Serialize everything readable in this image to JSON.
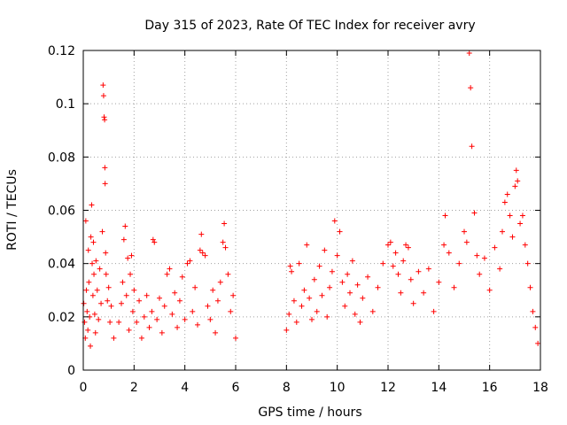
{
  "chart_data": {
    "type": "scatter",
    "title": "Day 315 of 2023, Rate Of TEC Index for receiver avry",
    "xlabel": "GPS time / hours",
    "ylabel": "ROTI / TECUs",
    "xlim": [
      0,
      18
    ],
    "ylim": [
      0,
      0.12
    ],
    "x_ticks": [
      0,
      2,
      4,
      6,
      8,
      10,
      12,
      14,
      16,
      18
    ],
    "x_tick_labels": [
      "0",
      "2",
      "4",
      "6",
      "8",
      "10",
      "12",
      "14",
      "16",
      "18"
    ],
    "y_ticks": [
      0,
      0.02,
      0.04,
      0.06,
      0.08,
      0.1,
      0.12
    ],
    "y_tick_labels": [
      "0",
      "0.02",
      "0.04",
      "0.06",
      "0.08",
      "0.1",
      "0.12"
    ],
    "grid": true,
    "marker": "plus",
    "color": "#ff0000",
    "data_gap_hours": [
      6.0,
      8.0
    ],
    "series": [
      {
        "name": "ROTI",
        "points": [
          [
            0.02,
            0.025
          ],
          [
            0.05,
            0.018
          ],
          [
            0.08,
            0.012
          ],
          [
            0.1,
            0.056
          ],
          [
            0.12,
            0.03
          ],
          [
            0.15,
            0.022
          ],
          [
            0.18,
            0.015
          ],
          [
            0.2,
            0.045
          ],
          [
            0.22,
            0.033
          ],
          [
            0.25,
            0.02
          ],
          [
            0.28,
            0.009
          ],
          [
            0.3,
            0.05
          ],
          [
            0.33,
            0.062
          ],
          [
            0.35,
            0.04
          ],
          [
            0.38,
            0.028
          ],
          [
            0.4,
            0.048
          ],
          [
            0.42,
            0.036
          ],
          [
            0.45,
            0.021
          ],
          [
            0.48,
            0.014
          ],
          [
            0.5,
            0.041
          ],
          [
            0.55,
            0.03
          ],
          [
            0.6,
            0.019
          ],
          [
            0.65,
            0.038
          ],
          [
            0.7,
            0.025
          ],
          [
            0.75,
            0.052
          ],
          [
            0.78,
            0.107
          ],
          [
            0.8,
            0.103
          ],
          [
            0.82,
            0.095
          ],
          [
            0.84,
            0.094
          ],
          [
            0.85,
            0.076
          ],
          [
            0.86,
            0.07
          ],
          [
            0.88,
            0.044
          ],
          [
            0.9,
            0.036
          ],
          [
            0.95,
            0.026
          ],
          [
            1.0,
            0.031
          ],
          [
            1.05,
            0.018
          ],
          [
            1.1,
            0.024
          ],
          [
            1.2,
            0.012
          ],
          [
            1.4,
            0.018
          ],
          [
            1.5,
            0.025
          ],
          [
            1.55,
            0.033
          ],
          [
            1.6,
            0.049
          ],
          [
            1.65,
            0.054
          ],
          [
            1.7,
            0.028
          ],
          [
            1.75,
            0.042
          ],
          [
            1.8,
            0.015
          ],
          [
            1.85,
            0.036
          ],
          [
            1.9,
            0.043
          ],
          [
            1.95,
            0.022
          ],
          [
            2.0,
            0.03
          ],
          [
            2.1,
            0.018
          ],
          [
            2.2,
            0.026
          ],
          [
            2.3,
            0.012
          ],
          [
            2.4,
            0.02
          ],
          [
            2.5,
            0.028
          ],
          [
            2.6,
            0.016
          ],
          [
            2.7,
            0.022
          ],
          [
            2.75,
            0.049
          ],
          [
            2.8,
            0.048
          ],
          [
            2.9,
            0.019
          ],
          [
            3.0,
            0.027
          ],
          [
            3.1,
            0.014
          ],
          [
            3.2,
            0.024
          ],
          [
            3.3,
            0.036
          ],
          [
            3.4,
            0.038
          ],
          [
            3.5,
            0.021
          ],
          [
            3.6,
            0.029
          ],
          [
            3.7,
            0.016
          ],
          [
            3.8,
            0.026
          ],
          [
            3.9,
            0.035
          ],
          [
            4.0,
            0.019
          ],
          [
            4.1,
            0.04
          ],
          [
            4.2,
            0.041
          ],
          [
            4.3,
            0.022
          ],
          [
            4.4,
            0.031
          ],
          [
            4.5,
            0.017
          ],
          [
            4.6,
            0.045
          ],
          [
            4.65,
            0.051
          ],
          [
            4.7,
            0.044
          ],
          [
            4.8,
            0.043
          ],
          [
            4.9,
            0.024
          ],
          [
            5.0,
            0.019
          ],
          [
            5.1,
            0.03
          ],
          [
            5.2,
            0.014
          ],
          [
            5.3,
            0.026
          ],
          [
            5.4,
            0.033
          ],
          [
            5.5,
            0.048
          ],
          [
            5.55,
            0.055
          ],
          [
            5.6,
            0.046
          ],
          [
            5.7,
            0.036
          ],
          [
            5.8,
            0.022
          ],
          [
            5.9,
            0.028
          ],
          [
            6.0,
            0.012
          ],
          [
            8.0,
            0.015
          ],
          [
            8.1,
            0.021
          ],
          [
            8.15,
            0.039
          ],
          [
            8.2,
            0.037
          ],
          [
            8.3,
            0.026
          ],
          [
            8.4,
            0.018
          ],
          [
            8.5,
            0.04
          ],
          [
            8.6,
            0.024
          ],
          [
            8.7,
            0.03
          ],
          [
            8.8,
            0.047
          ],
          [
            8.9,
            0.027
          ],
          [
            9.0,
            0.019
          ],
          [
            9.1,
            0.034
          ],
          [
            9.2,
            0.022
          ],
          [
            9.3,
            0.039
          ],
          [
            9.4,
            0.028
          ],
          [
            9.5,
            0.045
          ],
          [
            9.6,
            0.02
          ],
          [
            9.7,
            0.031
          ],
          [
            9.8,
            0.037
          ],
          [
            9.9,
            0.056
          ],
          [
            10.0,
            0.043
          ],
          [
            10.1,
            0.052
          ],
          [
            10.2,
            0.033
          ],
          [
            10.3,
            0.024
          ],
          [
            10.4,
            0.036
          ],
          [
            10.5,
            0.029
          ],
          [
            10.6,
            0.041
          ],
          [
            10.7,
            0.021
          ],
          [
            10.8,
            0.032
          ],
          [
            10.9,
            0.018
          ],
          [
            11.0,
            0.027
          ],
          [
            11.2,
            0.035
          ],
          [
            11.4,
            0.022
          ],
          [
            11.6,
            0.031
          ],
          [
            11.8,
            0.04
          ],
          [
            12.0,
            0.047
          ],
          [
            12.1,
            0.048
          ],
          [
            12.2,
            0.039
          ],
          [
            12.3,
            0.044
          ],
          [
            12.4,
            0.036
          ],
          [
            12.5,
            0.029
          ],
          [
            12.6,
            0.041
          ],
          [
            12.7,
            0.047
          ],
          [
            12.8,
            0.046
          ],
          [
            12.9,
            0.034
          ],
          [
            13.0,
            0.025
          ],
          [
            13.2,
            0.037
          ],
          [
            13.4,
            0.029
          ],
          [
            13.6,
            0.038
          ],
          [
            13.8,
            0.022
          ],
          [
            14.0,
            0.033
          ],
          [
            14.2,
            0.047
          ],
          [
            14.25,
            0.058
          ],
          [
            14.4,
            0.044
          ],
          [
            14.6,
            0.031
          ],
          [
            14.8,
            0.04
          ],
          [
            15.0,
            0.052
          ],
          [
            15.1,
            0.048
          ],
          [
            15.2,
            0.119
          ],
          [
            15.25,
            0.106
          ],
          [
            15.3,
            0.084
          ],
          [
            15.4,
            0.059
          ],
          [
            15.5,
            0.043
          ],
          [
            15.6,
            0.036
          ],
          [
            15.8,
            0.042
          ],
          [
            16.0,
            0.03
          ],
          [
            16.2,
            0.046
          ],
          [
            16.4,
            0.038
          ],
          [
            16.5,
            0.052
          ],
          [
            16.6,
            0.063
          ],
          [
            16.7,
            0.066
          ],
          [
            16.8,
            0.058
          ],
          [
            16.9,
            0.05
          ],
          [
            17.0,
            0.069
          ],
          [
            17.05,
            0.075
          ],
          [
            17.1,
            0.071
          ],
          [
            17.2,
            0.055
          ],
          [
            17.3,
            0.058
          ],
          [
            17.4,
            0.047
          ],
          [
            17.5,
            0.04
          ],
          [
            17.6,
            0.031
          ],
          [
            17.7,
            0.022
          ],
          [
            17.8,
            0.016
          ],
          [
            17.9,
            0.01
          ]
        ]
      }
    ]
  }
}
